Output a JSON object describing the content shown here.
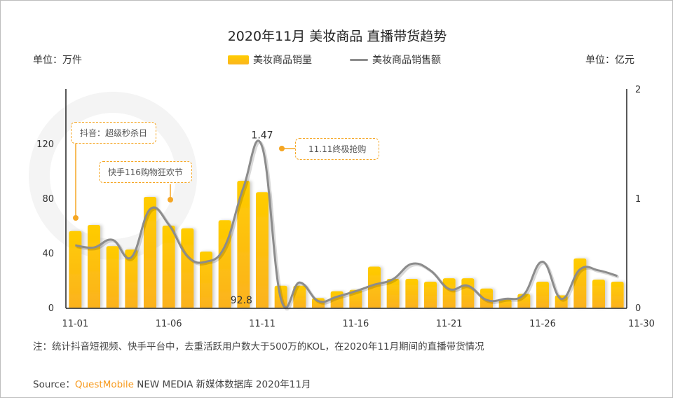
{
  "title": "2020年11月 美妆商品 直播带货趋势",
  "unit_left": "单位：万件",
  "unit_right": "单位：亿元",
  "watermark": "QUESTMOBILE",
  "annotations": {
    "douyin": "抖音：超级秒杀日",
    "kuaishou": "快手116购物狂欢节",
    "double11": "11.11终极抢购"
  },
  "note": "注：统计抖音短视频、快手平台中，去重活跃用户数大于500万的KOL，在2020年11月期间的直播带货情况",
  "source": {
    "prefix": "Source：",
    "brand": "QuestMobile",
    "rest": "NEW MEDIA 新媒体数据库 2020年11月"
  },
  "colors": {
    "bar": "#ffc400",
    "line": "#8c8c8c",
    "callout": "#f5a623"
  },
  "chart_data": {
    "type": "bar+line",
    "title": "2020年11月 美妆商品 直播带货趋势",
    "categories": [
      "11-01",
      "11-02",
      "11-03",
      "11-04",
      "11-05",
      "11-06",
      "11-07",
      "11-08",
      "11-09",
      "11-10",
      "11-11",
      "11-12",
      "11-13",
      "11-14",
      "11-15",
      "11-16",
      "11-17",
      "11-18",
      "11-19",
      "11-20",
      "11-21",
      "11-22",
      "11-23",
      "11-24",
      "11-25",
      "11-26",
      "11-27",
      "11-28",
      "11-29",
      "11-30"
    ],
    "x_tick_labels": [
      "11-01",
      "11-06",
      "11-11",
      "11-16",
      "11-21",
      "11-26",
      "11-30"
    ],
    "x_tick_index": [
      0,
      5,
      10,
      15,
      20,
      25,
      29
    ],
    "series": [
      {
        "name": "美妆商品销量",
        "type": "bar",
        "axis": "left",
        "values": [
          56,
          60.5,
          45,
          42.5,
          81,
          60,
          58,
          41,
          64,
          92.8,
          84.5,
          16,
          16,
          7,
          12,
          13,
          30,
          21,
          21,
          19,
          21.5,
          21.5,
          14,
          6,
          10,
          19,
          9,
          36,
          20.5,
          19
        ]
      },
      {
        "name": "美妆商品销售额",
        "type": "line",
        "axis": "right",
        "values": [
          0.57,
          0.55,
          0.62,
          0.46,
          0.9,
          0.76,
          0.47,
          0.42,
          0.56,
          1.1,
          1.47,
          0.08,
          0.23,
          0.06,
          0.1,
          0.15,
          0.21,
          0.26,
          0.4,
          0.34,
          0.17,
          0.2,
          0.07,
          0.08,
          0.12,
          0.42,
          0.08,
          0.35,
          0.34,
          0.29
        ]
      }
    ],
    "data_labels": [
      {
        "series": 0,
        "index": 9,
        "text": "92.8"
      },
      {
        "series": 1,
        "index": 10,
        "text": "1.47"
      }
    ],
    "y_left": {
      "ticks": [
        "0",
        "40",
        "80",
        "120"
      ],
      "tick_values": [
        0,
        40,
        80,
        120
      ],
      "ylim": [
        0,
        160
      ]
    },
    "y_right": {
      "ticks": [
        "0",
        "1",
        "2"
      ],
      "tick_values": [
        0,
        1,
        2
      ],
      "ylim": [
        0,
        2
      ]
    },
    "legend": "top-center"
  }
}
